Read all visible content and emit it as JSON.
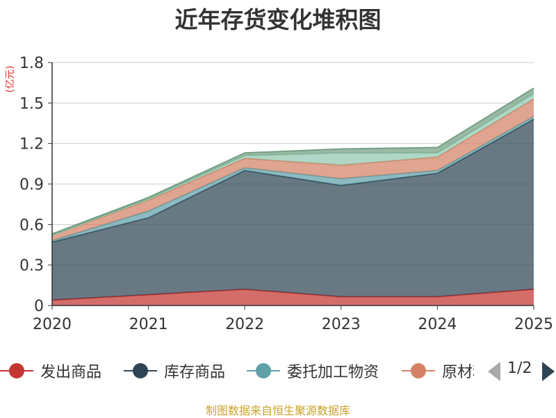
{
  "title": "近年存货变化堆积图",
  "y_unit": "(亿元)",
  "source": "制图数据来自恒生聚源数据库",
  "pager": {
    "text": "1/2"
  },
  "colors": {
    "axis": "#333333",
    "grid": "#cccccc",
    "unit": "#e0302c",
    "source": "#c9a227"
  },
  "chart_data": {
    "type": "area",
    "stacked": true,
    "title": "近年存货变化堆积图",
    "ylabel": "(亿元)",
    "x": [
      "2020",
      "2021",
      "2022",
      "2023",
      "2024",
      "2025"
    ],
    "ylim": [
      0,
      1.8
    ],
    "yticks": [
      "0",
      "0.3",
      "0.6",
      "0.9",
      "1.2",
      "1.5",
      "1.8"
    ],
    "grid": true,
    "legend_position": "bottom",
    "series": [
      {
        "name": "发出商品",
        "color": "#c23531",
        "values": [
          0.04,
          0.08,
          0.12,
          0.065,
          0.065,
          0.12
        ]
      },
      {
        "name": "库存商品",
        "color": "#2f4554",
        "values": [
          0.43,
          0.57,
          0.88,
          0.825,
          0.915,
          1.26
        ]
      },
      {
        "name": "委托加工物资",
        "color": "#61a0a8",
        "values": [
          0.01,
          0.05,
          0.02,
          0.05,
          0.02,
          0.02
        ]
      },
      {
        "name": "原材料",
        "color": "#d48265",
        "values": [
          0.04,
          0.08,
          0.07,
          0.1,
          0.1,
          0.13
        ]
      },
      {
        "name": "",
        "color": "#91c7ae",
        "values": [
          0.0,
          0.01,
          0.02,
          0.09,
          0.03,
          0.04
        ]
      },
      {
        "name": "",
        "color": "#749f83",
        "values": [
          0.01,
          0.01,
          0.02,
          0.03,
          0.04,
          0.04
        ]
      }
    ]
  }
}
